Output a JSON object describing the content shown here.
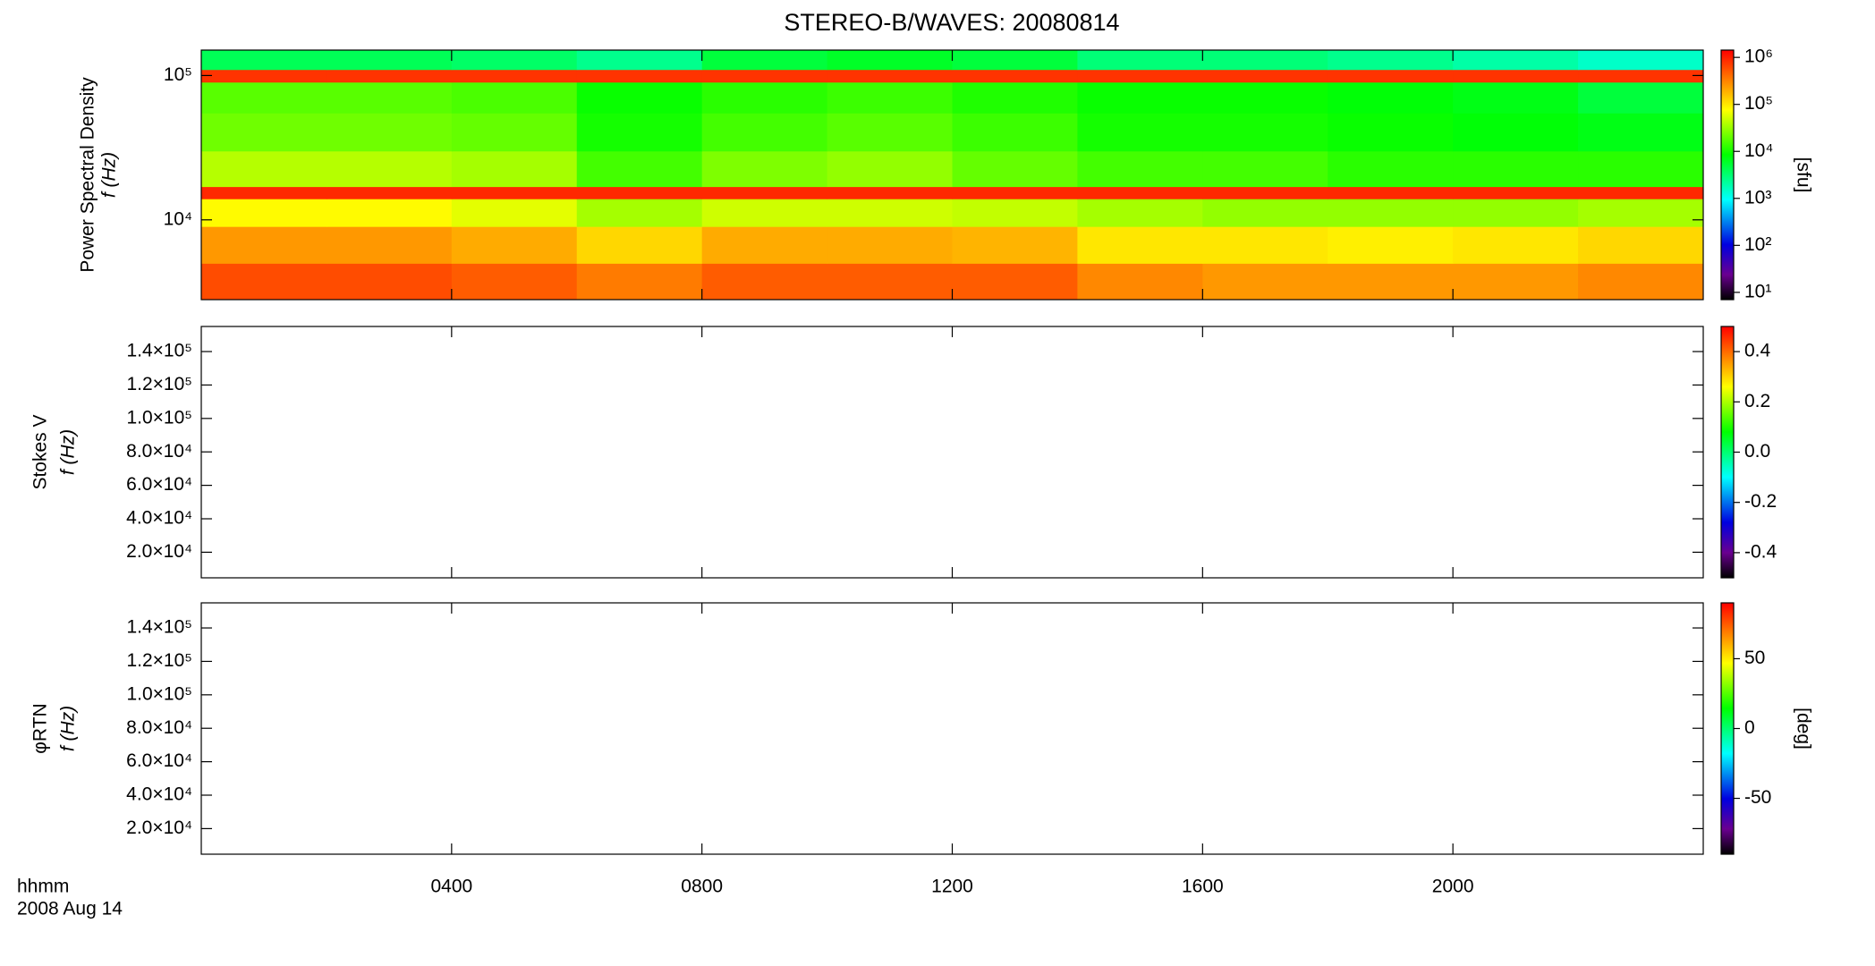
{
  "chart_data": [
    {
      "type": "heatmap",
      "title": "STEREO-B/WAVES: 20080814",
      "ylabel": "Power Spectral Density",
      "ylabel2": "f (Hz)",
      "zlabel": "[sfu]",
      "xlim": [
        0,
        24
      ],
      "xticks": [
        4,
        8,
        12,
        16,
        20
      ],
      "ylim": [
        2800,
        150000
      ],
      "log_y": true,
      "yticks": [
        {
          "value": 10000,
          "label": "10⁴"
        },
        {
          "value": 100000,
          "label": "10⁵"
        }
      ],
      "zlim": [
        7,
        1430000
      ],
      "log_z": true,
      "zticks": [
        {
          "value": 10,
          "label": "10¹"
        },
        {
          "value": 100,
          "label": "10²"
        },
        {
          "value": 1000,
          "label": "10³"
        },
        {
          "value": 10000,
          "label": "10⁴"
        },
        {
          "value": 100000,
          "label": "10⁵"
        },
        {
          "value": 1000000,
          "label": "10⁶"
        }
      ],
      "xbins": [
        0,
        2,
        4,
        6,
        8,
        10,
        12,
        14,
        16,
        18,
        20,
        22,
        24
      ],
      "ybins": [
        2800,
        5000,
        9000,
        14000,
        17000,
        30000,
        55000,
        90000,
        110000,
        150000
      ],
      "z": [
        [
          600000,
          600000,
          500000,
          350000,
          500000,
          500000,
          500000,
          300000,
          250000,
          250000,
          250000,
          300000
        ],
        [
          250000,
          250000,
          200000,
          120000,
          200000,
          200000,
          180000,
          100000,
          100000,
          90000,
          100000,
          120000
        ],
        [
          80000,
          80000,
          60000,
          35000,
          50000,
          50000,
          45000,
          35000,
          30000,
          30000,
          30000,
          35000
        ],
        [
          900000,
          900000,
          900000,
          900000,
          900000,
          900000,
          900000,
          900000,
          900000,
          900000,
          900000,
          900000
        ],
        [
          40000,
          40000,
          35000,
          15000,
          25000,
          30000,
          20000,
          15000,
          15000,
          12000,
          12000,
          12000
        ],
        [
          22000,
          22000,
          20000,
          10000,
          15000,
          18000,
          14000,
          10000,
          10000,
          9000,
          8000,
          7000
        ],
        [
          18000,
          18000,
          16000,
          9000,
          12000,
          14000,
          11000,
          9000,
          9000,
          8000,
          7000,
          5000
        ],
        [
          800000,
          800000,
          800000,
          800000,
          800000,
          800000,
          800000,
          800000,
          800000,
          800000,
          800000,
          800000
        ],
        [
          4000,
          4000,
          3500,
          2500,
          5000,
          6000,
          5000,
          3000,
          3000,
          2500,
          2000,
          1500
        ]
      ]
    },
    {
      "type": "heatmap",
      "ylabel": "Stokes V",
      "ylabel2": "f (Hz)",
      "xlim": [
        0,
        24
      ],
      "xticks": [
        4,
        8,
        12,
        16,
        20
      ],
      "ylim": [
        4700,
        155000
      ],
      "yticks": [
        {
          "value": 20000,
          "label": "2.0×10⁴"
        },
        {
          "value": 40000,
          "label": "4.0×10⁴"
        },
        {
          "value": 60000,
          "label": "6.0×10⁴"
        },
        {
          "value": 80000,
          "label": "8.0×10⁴"
        },
        {
          "value": 100000,
          "label": "1.0×10⁵"
        },
        {
          "value": 120000,
          "label": "1.2×10⁵"
        },
        {
          "value": 140000,
          "label": "1.4×10⁵"
        }
      ],
      "zlim": [
        -0.5,
        0.5
      ],
      "zticks": [
        -0.4,
        -0.2,
        {
          "value": 0,
          "label": "0.0"
        },
        0.2,
        0.4
      ]
    },
    {
      "type": "heatmap",
      "ylabel": "φRTN",
      "ylabel2": "f (Hz)",
      "zlabel": "[deg]",
      "xlabel": "hhmm",
      "date": "2008 Aug 14",
      "xlim": [
        0,
        24
      ],
      "xticks": [
        {
          "value": 4,
          "label": "0400"
        },
        {
          "value": 8,
          "label": "0800"
        },
        {
          "value": 12,
          "label": "1200"
        },
        {
          "value": 16,
          "label": "1600"
        },
        {
          "value": 20,
          "label": "2000"
        }
      ],
      "ylim": [
        4700,
        155000
      ],
      "yticks": [
        {
          "value": 20000,
          "label": "2.0×10⁴"
        },
        {
          "value": 40000,
          "label": "4.0×10⁴"
        },
        {
          "value": 60000,
          "label": "6.0×10⁴"
        },
        {
          "value": 80000,
          "label": "8.0×10⁴"
        },
        {
          "value": 100000,
          "label": "1.0×10⁵"
        },
        {
          "value": 120000,
          "label": "1.2×10⁵"
        },
        {
          "value": 140000,
          "label": "1.4×10⁵"
        }
      ],
      "zlim": [
        -90,
        90
      ],
      "zticks": [
        -50,
        0,
        50
      ]
    }
  ]
}
